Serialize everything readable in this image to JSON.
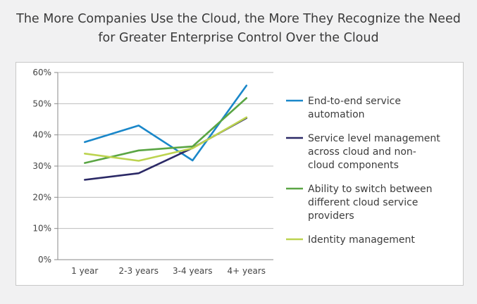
{
  "chart_data": {
    "type": "line",
    "title": "The More Companies Use the Cloud, the More They Recognize the Need for Greater Enterprise Control Over the Cloud",
    "title_lines": [
      "The More Companies Use the Cloud, the More They Recognize the Need",
      "for Greater Enterprise Control Over the Cloud"
    ],
    "categories": [
      "1 year",
      "2-3 years",
      "3-4 years",
      "4+ years"
    ],
    "y_ticks": [
      "0%",
      "10%",
      "20%",
      "30%",
      "40%",
      "50%",
      "60%"
    ],
    "ylim": [
      0,
      60
    ],
    "grid": true,
    "legend_position": "right",
    "series": [
      {
        "name": "End-to-end service automation",
        "legend_lines": [
          "End-to-end service",
          "automation"
        ],
        "color": "#1a87c9",
        "values": [
          37.7,
          43,
          31.8,
          55.8
        ]
      },
      {
        "name": "Service level management across cloud and non-cloud components",
        "legend_lines": [
          "Service level management",
          "across cloud and non-",
          "cloud components"
        ],
        "color": "#2b2966",
        "values": [
          25.6,
          27.7,
          35.8,
          45.4
        ]
      },
      {
        "name": "Ability to switch between different cloud service providers",
        "legend_lines": [
          "Ability to switch between",
          "different cloud service",
          "providers"
        ],
        "color": "#5aa544",
        "values": [
          31,
          35,
          36.3,
          51.8
        ]
      },
      {
        "name": "Identity management",
        "legend_lines": [
          "Identity management"
        ],
        "color": "#bcd34f",
        "values": [
          34,
          31.7,
          35.7,
          45.6
        ]
      }
    ]
  }
}
